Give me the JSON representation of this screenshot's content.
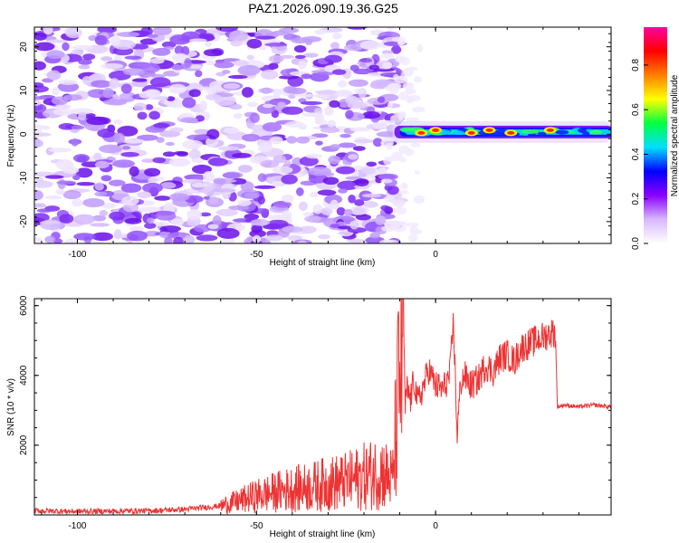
{
  "figure_title": "PAZ1.2026.090.19.36.G25",
  "chart_data": [
    {
      "type": "heatmap",
      "name": "spectrogram",
      "xlabel": "Height of straight line (km)",
      "ylabel": "Frequency (Hz)",
      "xlim": [
        -112,
        49
      ],
      "ylim": [
        -25,
        24.5
      ],
      "x_ticks": [
        -100,
        -50,
        0
      ],
      "y_ticks": [
        -20,
        -10,
        0,
        10,
        20
      ],
      "colorbar": {
        "label": "Normalized spectral amplitude",
        "range": [
          0,
          0.97
        ],
        "ticks": [
          0.0,
          0.2,
          0.4,
          0.6,
          0.8
        ],
        "colors": [
          "#ffffff",
          "#d8b8ff",
          "#8a00ff",
          "#0000ff",
          "#00e0ff",
          "#00ff40",
          "#ffff00",
          "#ff8000",
          "#ff0000",
          "#ff00a0"
        ]
      },
      "signal_band": {
        "x_start": -12,
        "x_end": 49,
        "frequency_hz": 0.5,
        "peak_x": [
          -4,
          0,
          10,
          15,
          21,
          32
        ]
      }
    },
    {
      "type": "line",
      "name": "snr",
      "xlabel": "Height of straight line (km)",
      "ylabel": "SNR (10 * v/v)",
      "xlim": [
        -112,
        49
      ],
      "ylim": [
        0,
        6200
      ],
      "x_ticks": [
        -100,
        -50,
        0
      ],
      "y_ticks": [
        2000,
        4000,
        6000
      ],
      "line_color": "#ee3333",
      "series": [
        {
          "name": "SNR",
          "x": [
            -112,
            -100,
            -90,
            -80,
            -70,
            -60,
            -55,
            -50,
            -45,
            -40,
            -35,
            -30,
            -25,
            -20,
            -15,
            -12,
            -10,
            -9,
            -8.5,
            -8,
            -7,
            -6,
            -5,
            -4,
            -3,
            -2,
            0,
            2,
            4,
            5,
            6,
            7,
            8,
            10,
            12,
            14,
            16,
            18,
            20,
            22,
            24,
            26,
            28,
            30,
            32,
            33,
            33.5,
            34,
            36,
            40,
            44,
            49
          ],
          "y": [
            120,
            100,
            110,
            120,
            160,
            260,
            400,
            550,
            650,
            750,
            800,
            900,
            950,
            1100,
            1250,
            1000,
            4000,
            6100,
            3000,
            3600,
            3300,
            3900,
            3200,
            3500,
            3800,
            4200,
            3700,
            3600,
            4000,
            5600,
            2300,
            3800,
            4000,
            3700,
            3900,
            4300,
            4100,
            4500,
            4600,
            4400,
            4800,
            4900,
            5000,
            5100,
            5200,
            5250,
            5100,
            3100,
            3150,
            3100,
            3150,
            3100
          ]
        }
      ]
    }
  ]
}
